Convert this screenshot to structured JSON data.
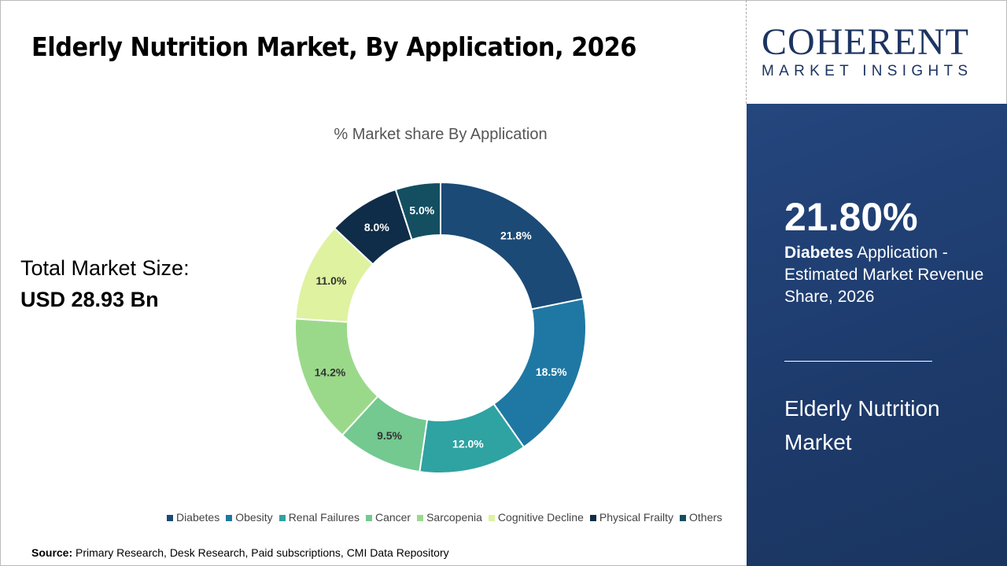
{
  "title": "Elderly Nutrition Market, By Application, 2026",
  "total_market": {
    "label": "Total Market Size:",
    "value": "USD 28.93 Bn"
  },
  "source": {
    "label": "Source:",
    "text": "Primary Research, Desk Research, Paid subscriptions, CMI Data Repository"
  },
  "logo": {
    "line1": "COHERENT",
    "line2": "MARKET INSIGHTS"
  },
  "panel": {
    "kpi": "21.80%",
    "desc_bold": "Diabetes",
    "desc_rest": " Application - Estimated Market Revenue Share, 2026",
    "market": "Elderly Nutrition Market"
  },
  "chart_data": {
    "type": "pie",
    "donut": true,
    "title": "% Market share By Application",
    "legend_position": "bottom",
    "categories": [
      "Diabetes",
      "Obesity",
      "Renal Failures",
      "Cancer",
      "Sarcopenia",
      "Cognitive Decline",
      "Physical Frailty",
      "Others"
    ],
    "values": [
      21.8,
      18.5,
      12.0,
      9.5,
      14.2,
      11.0,
      8.0,
      5.0
    ],
    "labels": [
      "21.8%",
      "18.5%",
      "12.0%",
      "9.5%",
      "14.2%",
      "11.0%",
      "8.0%",
      "5.0%"
    ],
    "colors": [
      "#1b4a76",
      "#1f78a3",
      "#2fa2a2",
      "#73c990",
      "#9bd98a",
      "#def2a0",
      "#0f2d48",
      "#134f61"
    ],
    "label_colors": [
      "#ffffff",
      "#ffffff",
      "#ffffff",
      "#333333",
      "#333333",
      "#333333",
      "#ffffff",
      "#ffffff"
    ]
  }
}
